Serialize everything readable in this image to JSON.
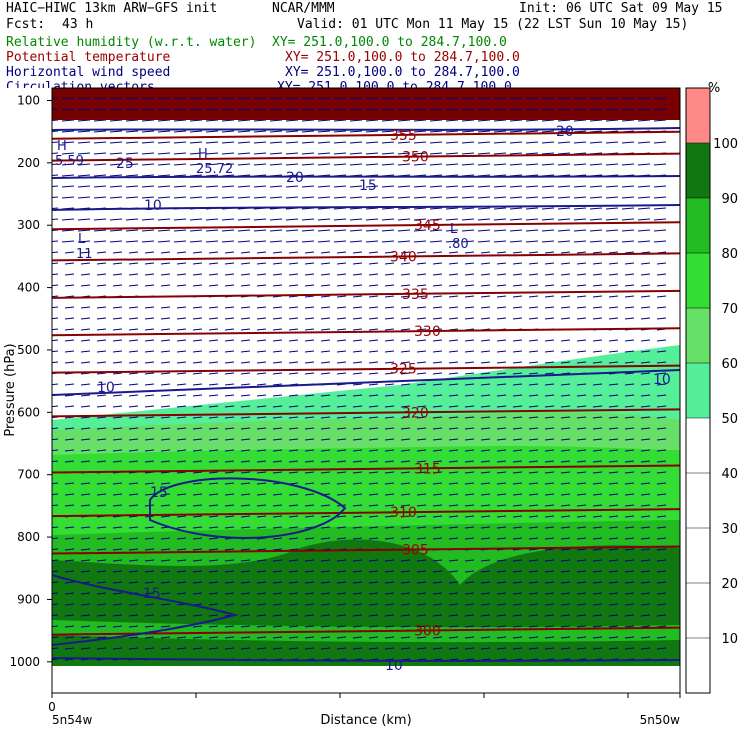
{
  "header": {
    "model": "HAIC−HIWC 13km ARW−GFS init",
    "center": "NCAR/MMM",
    "init": "Init: 06 UTC Sat 09 May 15",
    "fcst_label": "Fcst:",
    "fcst_value": "43 h",
    "valid": "Valid: 01 UTC Mon 11 May 15 (22 LST Sun 10 May 15)",
    "fields": [
      {
        "name": "Relative humidity (w.r.t. water)",
        "xy": "XY= 251.0,100.0 to 284.7,100.0",
        "color": "#008800"
      },
      {
        "name": "Potential temperature",
        "xy": "XY= 251.0,100.0 to 284.7,100.0",
        "color": "#990000"
      },
      {
        "name": "Horizontal wind speed",
        "xy": "XY= 251.0,100.0 to 284.7,100.0",
        "color": "#000080"
      },
      {
        "name": "Circulation vectors",
        "xy": "XY= 251.0,100.0 to 284.7,100.0",
        "color": "#000080"
      }
    ]
  },
  "chart_data": {
    "type": "heatmap",
    "ylabel": "Pressure (hPa)",
    "xlabel": "Distance (km)",
    "y_ticks": [
      100,
      200,
      300,
      400,
      500,
      600,
      700,
      800,
      900,
      1000
    ],
    "x_origin_label": "0",
    "x_left_label": "5n54w",
    "x_right_label": "5n50w",
    "ylim": [
      1050,
      80
    ],
    "colorbar": {
      "unit": "%",
      "levels": [
        10,
        20,
        30,
        40,
        50,
        60,
        70,
        80,
        90,
        100
      ],
      "fill_colors": {
        "50-60": "#55ee99",
        "60-70": "#66e066",
        "70-80": "#33dd33",
        "80-90": "#22bb22",
        "90-100": "#117711",
        "100+": "#ff8888"
      }
    },
    "theta_contours": [
      {
        "label": "355",
        "p": 155
      },
      {
        "label": "350",
        "p": 190
      },
      {
        "label": "345",
        "p": 300
      },
      {
        "label": "340",
        "p": 350
      },
      {
        "label": "335",
        "p": 410
      },
      {
        "label": "330",
        "p": 470
      },
      {
        "label": "325",
        "p": 530
      },
      {
        "label": "320",
        "p": 600
      },
      {
        "label": "315",
        "p": 690
      },
      {
        "label": "310",
        "p": 760
      },
      {
        "label": "305",
        "p": 820
      },
      {
        "label": "300",
        "p": 950
      }
    ],
    "wind_labels": [
      "20",
      "20",
      "25",
      "15",
      "10",
      "10",
      "10",
      "15",
      "15",
      "10"
    ],
    "extrema_labels": [
      {
        "symbol": "H",
        "value": "5.59"
      },
      {
        "symbol": "H",
        "value": "25.72"
      },
      {
        "symbol": "L",
        "value": "11"
      },
      {
        "symbol": "L",
        "value": ".80"
      }
    ]
  }
}
